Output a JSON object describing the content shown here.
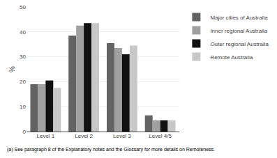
{
  "chart_data": {
    "type": "bar",
    "ylabel": "%",
    "annotations": [
      "(a) See paragraph 8 of the Explanatory notes and the Glossary for more details on Remoteness."
    ],
    "categories": [
      "Level 1",
      "Level 2",
      "Level 3",
      "Level 4/5"
    ],
    "series": [
      {
        "name": "Major cities of Australia",
        "color": "#636363",
        "values": [
          19.0,
          38.5,
          35.5,
          6.5
        ]
      },
      {
        "name": "Inner regional Australia",
        "color": "#a0a0a0",
        "values": [
          19.0,
          42.5,
          33.5,
          4.5
        ]
      },
      {
        "name": "Outer regional Australia",
        "color": "#111111",
        "values": [
          20.5,
          43.5,
          31.0,
          4.5
        ]
      },
      {
        "name": "Remote Australia",
        "color": "#c8c8c8",
        "values": [
          17.5,
          43.5,
          34.5,
          4.5
        ]
      }
    ],
    "ylim": [
      0,
      50
    ],
    "yticks": [
      0,
      10,
      20,
      30,
      40,
      50
    ],
    "grid": true,
    "legend": "upper right"
  }
}
